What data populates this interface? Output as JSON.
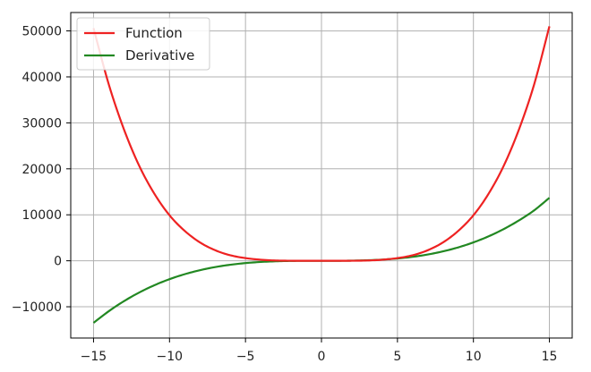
{
  "chart_data": {
    "type": "line",
    "title": "",
    "xlabel": "",
    "ylabel": "",
    "xlim": [
      -16.5,
      16.5
    ],
    "ylim": [
      -16800,
      54000
    ],
    "grid": true,
    "legend_position": "top-left",
    "x_ticks": [
      -15,
      -10,
      -5,
      0,
      5,
      10,
      15
    ],
    "x_tick_labels": [
      "−15",
      "−10",
      "−5",
      "0",
      "5",
      "10",
      "15"
    ],
    "y_ticks": [
      -10000,
      0,
      10000,
      20000,
      30000,
      40000,
      50000
    ],
    "y_tick_labels": [
      "−10000",
      "0",
      "10000",
      "20000",
      "30000",
      "40000",
      "50000"
    ],
    "x": [
      -15,
      -14,
      -13,
      -12,
      -11,
      -10,
      -9,
      -8,
      -7,
      -6,
      -5,
      -4,
      -3,
      -2,
      -1,
      0,
      1,
      2,
      3,
      4,
      5,
      6,
      7,
      8,
      9,
      10,
      11,
      12,
      13,
      14,
      15
    ],
    "series": [
      {
        "name": "Function",
        "color": "#ee2222",
        "values": [
          50600,
          38400,
          28600,
          20700,
          14600,
          9900,
          6500,
          4000,
          2300,
          1200,
          580,
          230,
          60,
          10,
          0,
          0,
          0,
          10,
          60,
          230,
          580,
          1200,
          2300,
          4000,
          6500,
          9900,
          14600,
          20700,
          28600,
          38400,
          51000
        ]
      },
      {
        "name": "Derivative",
        "color": "#228822",
        "values": [
          -13500,
          -10976,
          -8788,
          -6912,
          -5324,
          -4000,
          -2916,
          -2048,
          -1372,
          -864,
          -500,
          -256,
          -108,
          -32,
          -4,
          0,
          4,
          32,
          108,
          256,
          500,
          864,
          1372,
          2048,
          2916,
          4000,
          5324,
          6912,
          8788,
          10976,
          13700
        ]
      }
    ]
  }
}
